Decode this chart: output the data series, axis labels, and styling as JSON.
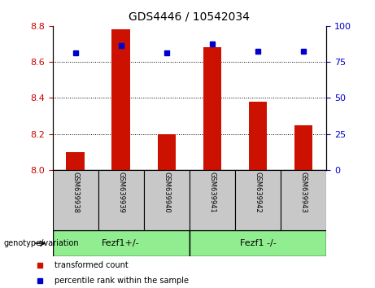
{
  "title": "GDS4446 / 10542034",
  "samples": [
    "GSM639938",
    "GSM639939",
    "GSM639940",
    "GSM639941",
    "GSM639942",
    "GSM639943"
  ],
  "red_values": [
    8.1,
    8.78,
    8.2,
    8.68,
    8.38,
    8.25
  ],
  "blue_values": [
    8.65,
    8.69,
    8.65,
    8.7,
    8.66,
    8.66
  ],
  "ylim_left": [
    8.0,
    8.8
  ],
  "ylim_right": [
    0,
    100
  ],
  "yticks_left": [
    8.0,
    8.2,
    8.4,
    8.6,
    8.8
  ],
  "yticks_right": [
    0,
    25,
    50,
    75,
    100
  ],
  "groups": [
    {
      "label": "Fezf1+/-",
      "indices": [
        0,
        1,
        2
      ],
      "color": "#90ee90"
    },
    {
      "label": "Fezf1 -/-",
      "indices": [
        3,
        4,
        5
      ],
      "color": "#90ee90"
    }
  ],
  "bar_color": "#cc1100",
  "marker_color": "#0000cc",
  "bar_bottom": 8.0,
  "tick_label_color_left": "#cc0000",
  "tick_label_color_right": "#0000cc",
  "legend_items": [
    {
      "label": "transformed count",
      "color": "#cc1100"
    },
    {
      "label": "percentile rank within the sample",
      "color": "#0000cc"
    }
  ],
  "group_row_label": "genotype/variation",
  "sample_bg_color": "#c8c8c8",
  "grid_dotted_yticks": [
    8.2,
    8.4,
    8.6
  ]
}
